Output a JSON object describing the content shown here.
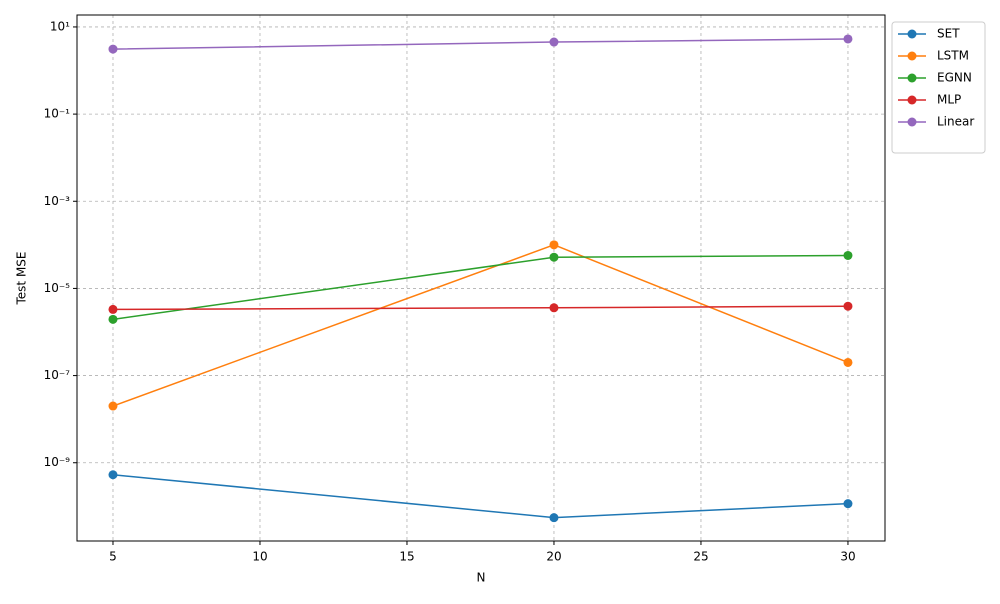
{
  "chart_data": {
    "type": "line",
    "xlabel": "N",
    "ylabel": "Test MSE",
    "x": [
      5,
      20,
      30
    ],
    "series": [
      {
        "name": "SET",
        "color": "#1f77b4",
        "values": [
          5.3e-10,
          5.5e-11,
          1.15e-10
        ]
      },
      {
        "name": "LSTM",
        "color": "#ff7f0e",
        "values": [
          2e-08,
          0.0001,
          2e-07
        ]
      },
      {
        "name": "EGNN",
        "color": "#2ca02c",
        "values": [
          1.95e-06,
          5.2e-05,
          5.7e-05
        ]
      },
      {
        "name": "MLP",
        "color": "#d62728",
        "values": [
          3.3e-06,
          3.6e-06,
          3.9e-06
        ]
      },
      {
        "name": "Linear",
        "color": "#9467bd",
        "values": [
          3.1,
          4.5,
          5.3
        ]
      }
    ],
    "xlim": [
      3.776,
      31.26
    ],
    "xticks": [
      5,
      10,
      15,
      20,
      25,
      30
    ],
    "ylim": [
      1.6e-11,
      18.8
    ],
    "yscale": "log",
    "yticks": [
      {
        "value": 1e-09,
        "label": "10⁻⁹"
      },
      {
        "value": 1e-07,
        "label": "10⁻⁷"
      },
      {
        "value": 1e-05,
        "label": "10⁻⁵"
      },
      {
        "value": 0.001,
        "label": "10⁻³"
      },
      {
        "value": 0.1,
        "label": "10⁻¹"
      },
      {
        "value": 10,
        "label": "10¹"
      }
    ],
    "grid": true,
    "legend": "outside-upper-right"
  }
}
